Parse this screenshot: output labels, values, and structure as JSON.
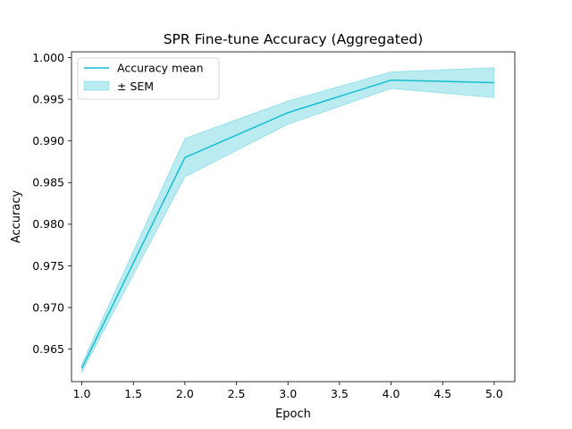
{
  "chart_data": {
    "type": "line",
    "title": "SPR Fine-tune Accuracy (Aggregated)",
    "xlabel": "Epoch",
    "ylabel": "Accuracy",
    "x": [
      1.0,
      2.0,
      3.0,
      4.0,
      5.0
    ],
    "series": [
      {
        "name": "Accuracy mean",
        "values": [
          0.9627,
          0.988,
          0.9934,
          0.9973,
          0.997
        ],
        "color": "#17becf"
      }
    ],
    "band": {
      "name": "± SEM",
      "lower": [
        0.9622,
        0.9857,
        0.992,
        0.9963,
        0.9952
      ],
      "upper": [
        0.9632,
        0.9903,
        0.9948,
        0.9983,
        0.9988
      ],
      "color": "#17becf"
    },
    "xlim": [
      0.9,
      5.2
    ],
    "ylim": [
      0.9611,
      1.0007
    ],
    "xticks": [
      1.0,
      1.5,
      2.0,
      2.5,
      3.0,
      3.5,
      4.0,
      4.5,
      5.0
    ],
    "yticks": [
      0.965,
      0.97,
      0.975,
      0.98,
      0.985,
      0.99,
      0.995,
      1.0
    ],
    "xtick_labels": [
      "1.0",
      "1.5",
      "2.0",
      "2.5",
      "3.0",
      "3.5",
      "4.0",
      "4.5",
      "5.0"
    ],
    "ytick_labels": [
      "0.965",
      "0.970",
      "0.975",
      "0.980",
      "0.985",
      "0.990",
      "0.995",
      "1.000"
    ],
    "grid": false,
    "legend_position": "upper-left"
  }
}
